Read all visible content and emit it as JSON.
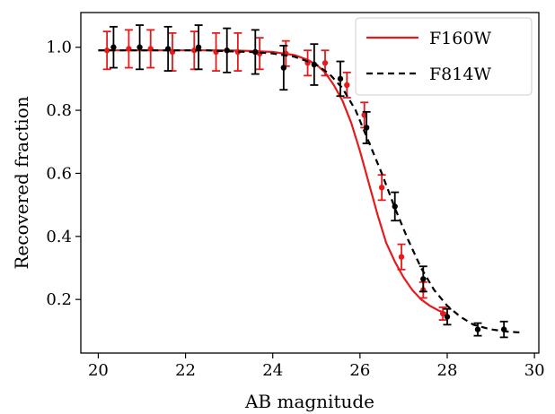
{
  "chart_data": {
    "type": "line",
    "xlabel": "AB magnitude",
    "ylabel": "Recovered fraction",
    "xlim": [
      19.6,
      30.1
    ],
    "ylim": [
      0.03,
      1.11
    ],
    "x_ticks": [
      20,
      22,
      24,
      26,
      28,
      30
    ],
    "y_ticks": [
      0.2,
      0.4,
      0.6,
      0.8,
      1.0
    ],
    "x_tick_labels": [
      "20",
      "22",
      "24",
      "26",
      "28",
      "30"
    ],
    "y_tick_labels": [
      "0.2",
      "0.4",
      "0.6",
      "0.8",
      "1.0"
    ],
    "grid": false,
    "legend_position": "top-right",
    "series": [
      {
        "name": "F160W",
        "color": "#e41a1c",
        "line_style": "solid",
        "fit_x": [
          20.0,
          20.5,
          21.0,
          21.5,
          22.0,
          22.5,
          23.0,
          23.5,
          24.0,
          24.5,
          24.8,
          25.0,
          25.2,
          25.4,
          25.6,
          25.8,
          26.0,
          26.2,
          26.4,
          26.6,
          26.8,
          27.0,
          27.2,
          27.4,
          27.6,
          27.8,
          28.0
        ],
        "fit_y": [
          0.99,
          0.99,
          0.99,
          0.99,
          0.99,
          0.99,
          0.99,
          0.988,
          0.985,
          0.975,
          0.96,
          0.945,
          0.92,
          0.88,
          0.83,
          0.76,
          0.67,
          0.57,
          0.47,
          0.38,
          0.32,
          0.27,
          0.23,
          0.2,
          0.18,
          0.165,
          0.155
        ],
        "points": [
          {
            "x": 20.2,
            "y": 0.99,
            "err": 0.06
          },
          {
            "x": 20.7,
            "y": 0.995,
            "err": 0.06
          },
          {
            "x": 21.2,
            "y": 0.995,
            "err": 0.06
          },
          {
            "x": 21.7,
            "y": 0.985,
            "err": 0.06
          },
          {
            "x": 22.2,
            "y": 0.99,
            "err": 0.06
          },
          {
            "x": 22.7,
            "y": 0.985,
            "err": 0.06
          },
          {
            "x": 23.2,
            "y": 0.985,
            "err": 0.06
          },
          {
            "x": 23.7,
            "y": 0.98,
            "err": 0.05
          },
          {
            "x": 24.3,
            "y": 0.98,
            "err": 0.04
          },
          {
            "x": 24.8,
            "y": 0.95,
            "err": 0.04
          },
          {
            "x": 25.2,
            "y": 0.95,
            "err": 0.04
          },
          {
            "x": 25.7,
            "y": 0.88,
            "err": 0.04
          },
          {
            "x": 26.1,
            "y": 0.785,
            "err": 0.04
          },
          {
            "x": 26.5,
            "y": 0.555,
            "err": 0.04
          },
          {
            "x": 26.95,
            "y": 0.335,
            "err": 0.04
          },
          {
            "x": 27.45,
            "y": 0.23,
            "err": 0.025
          },
          {
            "x": 27.9,
            "y": 0.155,
            "err": 0.02
          }
        ]
      },
      {
        "name": "F814W",
        "color": "#000000",
        "line_style": "dashed",
        "fit_x": [
          20.0,
          20.5,
          21.0,
          21.5,
          22.0,
          22.5,
          23.0,
          23.5,
          24.0,
          24.5,
          25.0,
          25.3,
          25.6,
          25.9,
          26.2,
          26.5,
          26.8,
          27.1,
          27.4,
          27.7,
          28.0,
          28.3,
          28.6,
          29.0,
          29.4,
          29.7
        ],
        "fit_y": [
          0.99,
          0.99,
          0.99,
          0.99,
          0.99,
          0.99,
          0.987,
          0.985,
          0.98,
          0.97,
          0.945,
          0.915,
          0.87,
          0.8,
          0.7,
          0.6,
          0.49,
          0.39,
          0.3,
          0.23,
          0.18,
          0.145,
          0.12,
          0.105,
          0.098,
          0.095
        ],
        "points": [
          {
            "x": 20.35,
            "y": 1.0,
            "err": 0.065
          },
          {
            "x": 20.95,
            "y": 1.0,
            "err": 0.07
          },
          {
            "x": 21.6,
            "y": 0.995,
            "err": 0.07
          },
          {
            "x": 22.3,
            "y": 1.0,
            "err": 0.07
          },
          {
            "x": 22.95,
            "y": 0.99,
            "err": 0.07
          },
          {
            "x": 23.6,
            "y": 0.985,
            "err": 0.07
          },
          {
            "x": 24.25,
            "y": 0.935,
            "err": 0.07
          },
          {
            "x": 24.95,
            "y": 0.945,
            "err": 0.065
          },
          {
            "x": 25.55,
            "y": 0.9,
            "err": 0.055
          },
          {
            "x": 26.15,
            "y": 0.745,
            "err": 0.05
          },
          {
            "x": 26.8,
            "y": 0.495,
            "err": 0.045
          },
          {
            "x": 27.45,
            "y": 0.265,
            "err": 0.04
          },
          {
            "x": 28.0,
            "y": 0.145,
            "err": 0.025
          },
          {
            "x": 28.7,
            "y": 0.105,
            "err": 0.02
          },
          {
            "x": 29.3,
            "y": 0.105,
            "err": 0.025
          }
        ]
      }
    ]
  }
}
